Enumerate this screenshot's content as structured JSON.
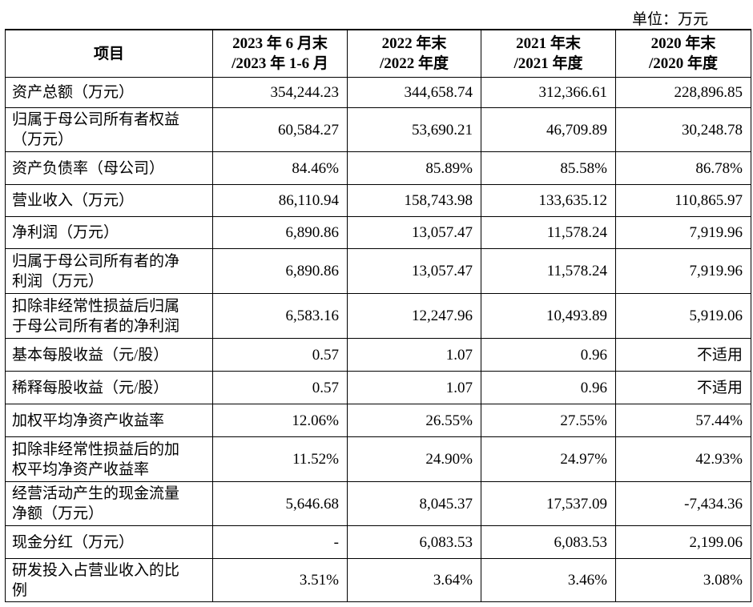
{
  "unit": "单位：万元",
  "table": {
    "header": [
      [
        "项目"
      ],
      [
        "2023 年 6 月末",
        "/2023 年 1-6 月"
      ],
      [
        "2022 年末",
        "/2022 年度"
      ],
      [
        "2021 年末",
        "/2021 年度"
      ],
      [
        "2020 年末",
        "/2020 年度"
      ]
    ],
    "rows": [
      [
        [
          "资产总额（万元）"
        ],
        "354,244.23",
        "344,658.74",
        "312,366.61",
        "228,896.85"
      ],
      [
        [
          "归属于母公司所有者权益",
          "（万元）"
        ],
        "60,584.27",
        "53,690.21",
        "46,709.89",
        "30,248.78"
      ],
      [
        [
          "资产负债率（母公司）"
        ],
        "84.46%",
        "85.89%",
        "85.58%",
        "86.78%"
      ],
      [
        [
          "营业收入（万元）"
        ],
        "86,110.94",
        "158,743.98",
        "133,635.12",
        "110,865.97"
      ],
      [
        [
          "净利润（万元）"
        ],
        "6,890.86",
        "13,057.47",
        "11,578.24",
        "7,919.96"
      ],
      [
        [
          "归属于母公司所有者的净",
          "利润（万元）"
        ],
        "6,890.86",
        "13,057.47",
        "11,578.24",
        "7,919.96"
      ],
      [
        [
          "扣除非经常性损益后归属",
          "于母公司所有者的净利润"
        ],
        "6,583.16",
        "12,247.96",
        "10,493.89",
        "5,919.06"
      ],
      [
        [
          "基本每股收益（元/股）"
        ],
        "0.57",
        "1.07",
        "0.96",
        "不适用"
      ],
      [
        [
          "稀释每股收益（元/股）"
        ],
        "0.57",
        "1.07",
        "0.96",
        "不适用"
      ],
      [
        [
          "加权平均净资产收益率"
        ],
        "12.06%",
        "26.55%",
        "27.55%",
        "57.44%"
      ],
      [
        [
          "扣除非经常性损益后的加",
          "权平均净资产收益率"
        ],
        "11.52%",
        "24.90%",
        "24.97%",
        "42.93%"
      ],
      [
        [
          "经营活动产生的现金流量",
          "净额（万元）"
        ],
        "5,646.68",
        "8,045.37",
        "17,537.09",
        "-7,434.36"
      ],
      [
        [
          "现金分红（万元）"
        ],
        "-",
        "6,083.53",
        "6,083.53",
        "2,199.06"
      ],
      [
        [
          "研发投入占营业收入的比",
          "例"
        ],
        "3.51%",
        "3.64%",
        "3.46%",
        "3.08%"
      ]
    ]
  }
}
